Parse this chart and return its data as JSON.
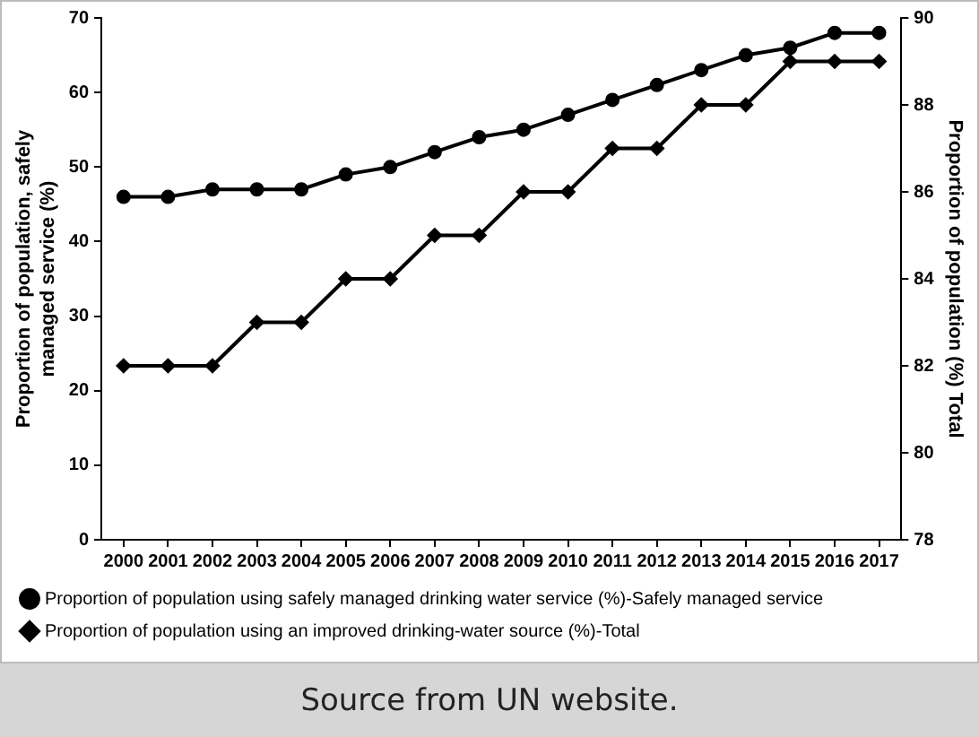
{
  "chart_data": {
    "type": "line",
    "ylabel": "Proportion of population, safely managed service (%)",
    "y2label": "Proportion of population (%) Total",
    "categories": [
      "2000",
      "2001",
      "2002",
      "2003",
      "2004",
      "2005",
      "2006",
      "2007",
      "2008",
      "2009",
      "2010",
      "2011",
      "2012",
      "2013",
      "2014",
      "2015",
      "2016",
      "2017"
    ],
    "series": [
      {
        "name": "Proportion of population using safely managed drinking water service (%)-Safely managed service",
        "color": "#000000",
        "marker": "circle",
        "values": [
          46,
          46,
          47,
          47,
          47,
          49,
          50,
          52,
          54,
          55,
          57,
          59,
          61,
          63,
          65,
          66,
          68,
          68
        ]
      },
      {
        "name": "Proportion of population using an improved drinking-water source (%)-Total",
        "color": "#000000",
        "marker": "diamond",
        "axis": "y2",
        "values": [
          82,
          82,
          82,
          83,
          83,
          84,
          84,
          85,
          85,
          86,
          86,
          87,
          87,
          88,
          88,
          89,
          89,
          89
        ]
      }
    ],
    "ylim": [
      0,
      70
    ],
    "yticks": [
      0,
      10,
      20,
      30,
      40,
      50,
      60,
      70
    ],
    "y2lim": [
      78,
      90
    ],
    "y2ticks": [
      78,
      80,
      82,
      84,
      86,
      88,
      90
    ],
    "grid": false,
    "legend": "bottom",
    "line_style": "solid",
    "annotations": [
      "Source from UN website."
    ]
  }
}
